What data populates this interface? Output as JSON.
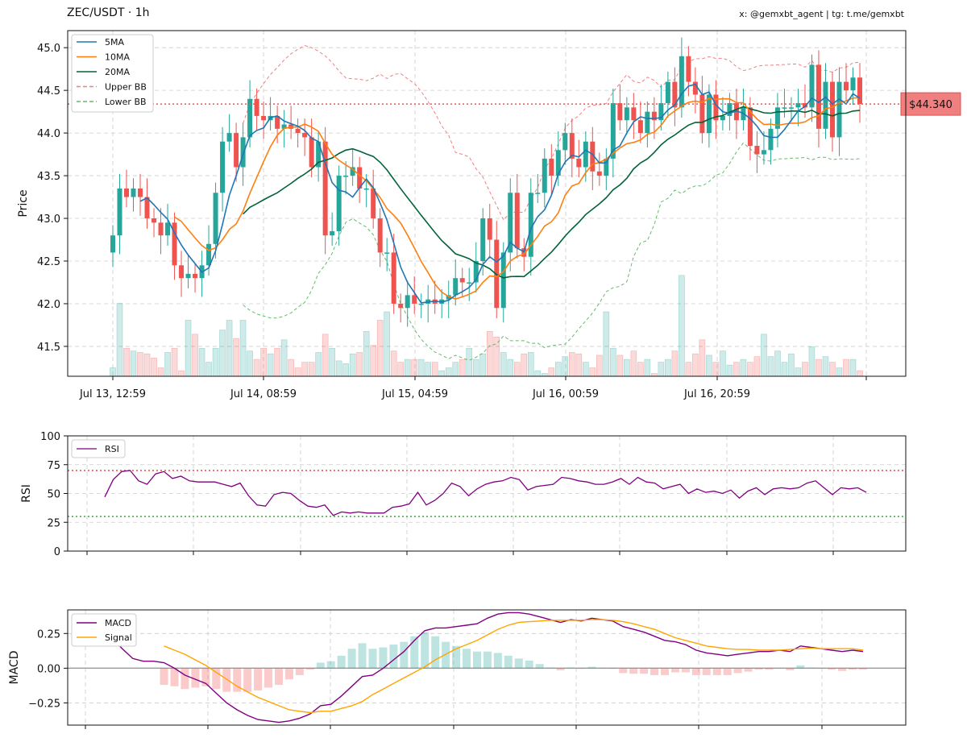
{
  "header": {
    "title": "ZEC/USDT · 1h",
    "credit": "x: @gemxbt_agent | tg: t.me/gemxbt"
  },
  "colors": {
    "up": "#26a69a",
    "down": "#ef5350",
    "ma5": "#1f77b4",
    "ma10": "#ff7f0e",
    "ma20": "#006437",
    "upper_bb": "#f08080",
    "lower_bb": "#66bb6a",
    "rsi": "#800080",
    "macd": "#800080",
    "signal": "#ffa500"
  },
  "chart_data": [
    {
      "type": "candlestick",
      "ylabel": "Price",
      "ylim": [
        41.15,
        45.2
      ],
      "yticks": [
        "41.5",
        "42.0",
        "42.5",
        "43.0",
        "43.5",
        "44.0",
        "44.5",
        "45.0"
      ],
      "xtick_labels": [
        "Jul 13, 12:59",
        "Jul 14, 08:59",
        "Jul 15, 04:59",
        "Jul 16, 00:59",
        "Jul 16, 20:59"
      ],
      "current_price_label": "$44.340",
      "current_price": 44.34,
      "legend": [
        "5MA",
        "10MA",
        "20MA",
        "Upper BB",
        "Lower BB"
      ],
      "close": [
        42.8,
        43.35,
        43.25,
        43.35,
        43.25,
        43.0,
        42.95,
        42.8,
        42.95,
        42.45,
        42.3,
        42.35,
        42.3,
        42.45,
        42.7,
        43.3,
        43.9,
        44.0,
        43.6,
        43.95,
        44.4,
        44.2,
        44.15,
        44.2,
        44.05,
        44.1,
        44.05,
        44.0,
        43.95,
        43.6,
        43.9,
        42.8,
        42.85,
        43.5,
        43.5,
        43.6,
        43.35,
        43.35,
        43.0,
        42.6,
        42.6,
        42.0,
        41.95,
        42.1,
        42.0,
        42.0,
        42.05,
        42.0,
        42.05,
        42.1,
        42.3,
        42.25,
        42.25,
        42.5,
        43.0,
        42.75,
        41.95,
        42.6,
        43.3,
        42.65,
        42.55,
        43.3,
        43.3,
        43.7,
        43.5,
        43.8,
        44.0,
        43.7,
        43.6,
        43.9,
        43.55,
        43.5,
        43.7,
        44.35,
        44.15,
        44.3,
        44.15,
        44.0,
        44.25,
        44.15,
        44.35,
        44.6,
        44.3,
        44.9,
        44.6,
        44.45,
        44.0,
        44.45,
        44.15,
        44.2,
        44.35,
        44.15,
        44.3,
        43.85,
        43.75,
        43.8,
        44.05,
        44.3,
        44.3,
        44.3,
        44.35,
        44.3,
        44.8,
        44.05,
        44.6,
        43.95,
        44.6,
        44.5,
        44.65,
        44.34
      ],
      "open": [
        42.6,
        42.8,
        43.35,
        43.25,
        43.35,
        43.25,
        43.0,
        42.95,
        42.8,
        42.95,
        42.45,
        42.3,
        42.35,
        42.3,
        42.45,
        42.7,
        43.3,
        43.9,
        44.0,
        43.6,
        43.95,
        44.4,
        44.2,
        44.15,
        44.2,
        44.05,
        44.1,
        44.05,
        44.0,
        43.95,
        43.6,
        43.9,
        42.8,
        42.85,
        43.5,
        43.5,
        43.6,
        43.35,
        43.35,
        43.0,
        42.6,
        42.6,
        42.0,
        41.95,
        42.1,
        42.0,
        42.0,
        42.05,
        42.0,
        42.05,
        42.1,
        42.3,
        42.25,
        42.25,
        42.5,
        43.0,
        42.75,
        41.95,
        42.6,
        43.3,
        42.65,
        42.55,
        43.3,
        43.3,
        43.7,
        43.5,
        43.8,
        44.0,
        43.7,
        43.6,
        43.9,
        43.55,
        43.5,
        43.7,
        44.35,
        44.15,
        44.3,
        44.15,
        44.0,
        44.25,
        44.15,
        44.35,
        44.6,
        44.3,
        44.9,
        44.6,
        44.45,
        44.0,
        44.45,
        44.15,
        44.2,
        44.35,
        44.15,
        44.3,
        43.85,
        43.75,
        43.8,
        44.05,
        44.3,
        44.3,
        44.3,
        44.35,
        44.3,
        44.8,
        44.05,
        44.6,
        43.95,
        44.6,
        44.5,
        44.65
      ],
      "volume": [
        0.3,
        2.6,
        1.0,
        0.9,
        0.85,
        0.8,
        0.65,
        0.3,
        0.85,
        1.0,
        0.2,
        2.0,
        1.5,
        1.0,
        0.5,
        1.0,
        1.65,
        2.0,
        1.35,
        2.0,
        0.9,
        0.6,
        1.0,
        0.8,
        1.0,
        1.3,
        0.6,
        0.3,
        0.5,
        0.5,
        0.85,
        1.5,
        1.0,
        0.55,
        0.45,
        0.8,
        0.85,
        1.6,
        1.1,
        2.0,
        2.3,
        0.9,
        0.5,
        0.6,
        0.6,
        0.6,
        0.5,
        0.5,
        0.2,
        0.3,
        0.5,
        0.6,
        1.0,
        0.6,
        0.8,
        1.6,
        1.4,
        0.85,
        0.6,
        0.5,
        0.8,
        0.85,
        0.2,
        0.1,
        0.3,
        0.5,
        0.7,
        0.85,
        0.8,
        0.5,
        0.3,
        0.75,
        2.3,
        1.0,
        0.75,
        0.6,
        0.9,
        0.5,
        0.6,
        0.1,
        0.5,
        0.6,
        0.9,
        3.6,
        0.5,
        0.8,
        1.3,
        0.75,
        0.5,
        0.9,
        0.4,
        0.5,
        0.6,
        0.5,
        0.7,
        1.5,
        0.7,
        0.9,
        0.5,
        0.8,
        0.3,
        0.5,
        1.05,
        0.6,
        0.7,
        0.5,
        0.3,
        0.6,
        0.6,
        0.2
      ]
    },
    {
      "type": "line",
      "ylabel": "RSI",
      "ylim": [
        0,
        100
      ],
      "yticks": [
        "0",
        "25",
        "50",
        "75",
        "100"
      ],
      "legend": [
        "RSI"
      ],
      "overbought": 70,
      "oversold": 30,
      "values": [
        47,
        62,
        69,
        70,
        61,
        58,
        67,
        69,
        63,
        65,
        61,
        60,
        60,
        60,
        58,
        56,
        59,
        48,
        40,
        39,
        49,
        51,
        50,
        44,
        39,
        38,
        40,
        31,
        34,
        33,
        34,
        33,
        33,
        33,
        38,
        39,
        41,
        51,
        40,
        44,
        50,
        59,
        56,
        48,
        54,
        58,
        60,
        61,
        64,
        62,
        53,
        56,
        57,
        58,
        64,
        63,
        61,
        60,
        58,
        58,
        60,
        63,
        58,
        64,
        60,
        59,
        54,
        56,
        58,
        50,
        54,
        51,
        52,
        50,
        53,
        46,
        52,
        55,
        49,
        54,
        55,
        54,
        55,
        59,
        61,
        55,
        49,
        55,
        54,
        55,
        51
      ]
    },
    {
      "type": "line",
      "ylabel": "MACD",
      "ylim": [
        -0.41,
        0.42
      ],
      "yticks": [
        "−0.25",
        "0.00",
        "0.25"
      ],
      "legend": [
        "MACD",
        "Signal"
      ],
      "macd": [
        0.33,
        0.3,
        0.27,
        0.22,
        0.14,
        0.07,
        0.05,
        0.05,
        0.04,
        0.0,
        -0.05,
        -0.08,
        -0.11,
        -0.18,
        -0.25,
        -0.3,
        -0.34,
        -0.37,
        -0.38,
        -0.39,
        -0.38,
        -0.36,
        -0.33,
        -0.27,
        -0.26,
        -0.2,
        -0.13,
        -0.06,
        -0.05,
        0.0,
        0.06,
        0.12,
        0.2,
        0.27,
        0.29,
        0.29,
        0.3,
        0.31,
        0.32,
        0.36,
        0.39,
        0.4,
        0.4,
        0.39,
        0.37,
        0.35,
        0.33,
        0.35,
        0.34,
        0.36,
        0.35,
        0.34,
        0.3,
        0.28,
        0.26,
        0.23,
        0.2,
        0.19,
        0.17,
        0.13,
        0.11,
        0.1,
        0.09,
        0.1,
        0.11,
        0.12,
        0.12,
        0.13,
        0.12,
        0.16,
        0.15,
        0.14,
        0.13,
        0.12,
        0.13,
        0.12
      ],
      "signal": [
        null,
        null,
        null,
        null,
        null,
        null,
        null,
        null,
        0.16,
        0.13,
        0.1,
        0.06,
        0.02,
        -0.03,
        -0.08,
        -0.13,
        -0.17,
        -0.21,
        -0.24,
        -0.27,
        -0.3,
        -0.31,
        -0.32,
        -0.31,
        -0.31,
        -0.29,
        -0.27,
        -0.24,
        -0.19,
        -0.15,
        -0.11,
        -0.07,
        -0.03,
        0.01,
        0.06,
        0.1,
        0.14,
        0.17,
        0.2,
        0.24,
        0.28,
        0.31,
        0.33,
        0.335,
        0.34,
        0.345,
        0.345,
        0.345,
        0.345,
        0.35,
        0.35,
        0.345,
        0.335,
        0.32,
        0.3,
        0.28,
        0.25,
        0.22,
        0.2,
        0.18,
        0.16,
        0.15,
        0.14,
        0.135,
        0.135,
        0.13,
        0.13,
        0.13,
        0.135,
        0.14,
        0.145,
        0.14,
        0.14,
        0.14,
        0.14,
        0.13
      ]
    }
  ]
}
